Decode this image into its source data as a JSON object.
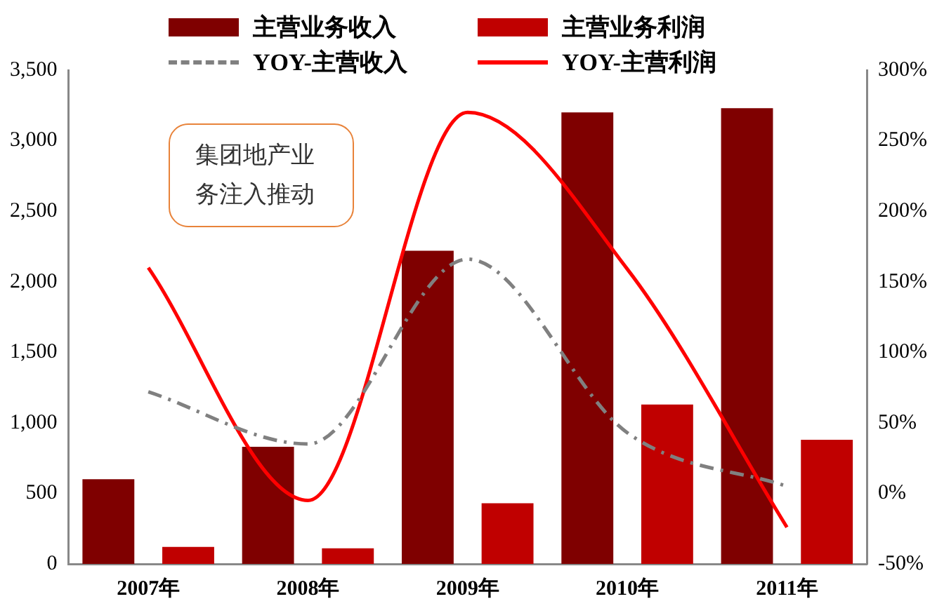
{
  "chart_data": {
    "type": "bar",
    "categories": [
      "2007年",
      "2008年",
      "2009年",
      "2010年",
      "2011年"
    ],
    "series": [
      {
        "name": "主营业务收入",
        "color": "#7f0000",
        "values": [
          600,
          830,
          2220,
          3200,
          3230
        ]
      },
      {
        "name": "主营业务利润",
        "color": "#c00000",
        "values": [
          120,
          110,
          430,
          1130,
          880
        ]
      },
      {
        "name": "YOY-主营收入",
        "type": "line",
        "axis": "y2",
        "line_style": "dashed",
        "color": "#808080",
        "values": [
          72,
          35,
          166,
          43,
          5
        ]
      },
      {
        "name": "YOY-主营利润",
        "type": "line",
        "axis": "y2",
        "line_style": "solid",
        "color": "#ff0000",
        "values": [
          160,
          -5,
          270,
          159,
          -24
        ]
      }
    ],
    "ylim": [
      0,
      3500
    ],
    "yticks": [
      {
        "value": 0,
        "label": "0"
      },
      {
        "value": 500,
        "label": "500"
      },
      {
        "value": 1000,
        "label": "1,000"
      },
      {
        "value": 1500,
        "label": "1,500"
      },
      {
        "value": 2000,
        "label": "2,000"
      },
      {
        "value": 2500,
        "label": "2,500"
      },
      {
        "value": 3000,
        "label": "3,000"
      },
      {
        "value": 3500,
        "label": "3,500"
      }
    ],
    "y2lim": [
      -50,
      300
    ],
    "y2ticks": [
      {
        "value": -50,
        "label": "-50%"
      },
      {
        "value": 0,
        "label": "0%"
      },
      {
        "value": 50,
        "label": "50%"
      },
      {
        "value": 100,
        "label": "100%"
      },
      {
        "value": 150,
        "label": "150%"
      },
      {
        "value": 200,
        "label": "200%"
      },
      {
        "value": 250,
        "label": "250%"
      },
      {
        "value": 300,
        "label": "300%"
      }
    ],
    "annotations": [
      "集团地产业务注入推动"
    ],
    "grid": false,
    "legend": "top",
    "marker": "none"
  }
}
